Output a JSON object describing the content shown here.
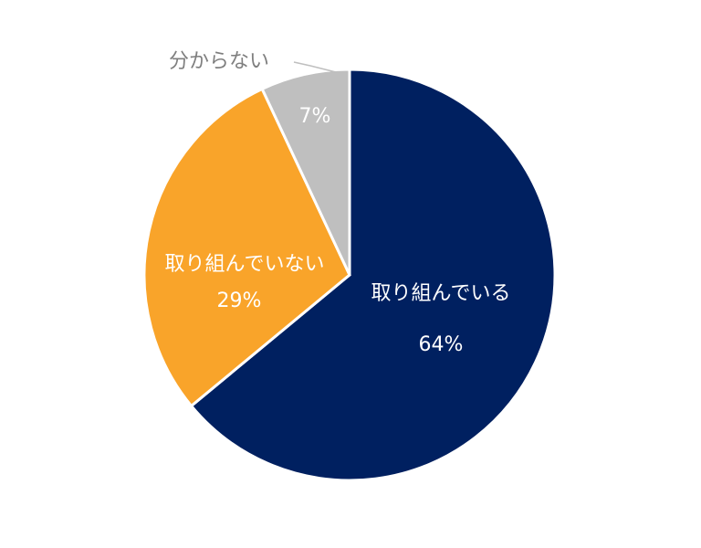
{
  "chart_data": {
    "type": "pie",
    "categories": [
      "取り組んでいる",
      "取り組んでいない",
      "分からない"
    ],
    "values": [
      64,
      29,
      7
    ],
    "value_labels": [
      "64%",
      "29%",
      "7%"
    ],
    "colors": [
      "#002060",
      "#f9a42a",
      "#bfbfbf"
    ]
  }
}
